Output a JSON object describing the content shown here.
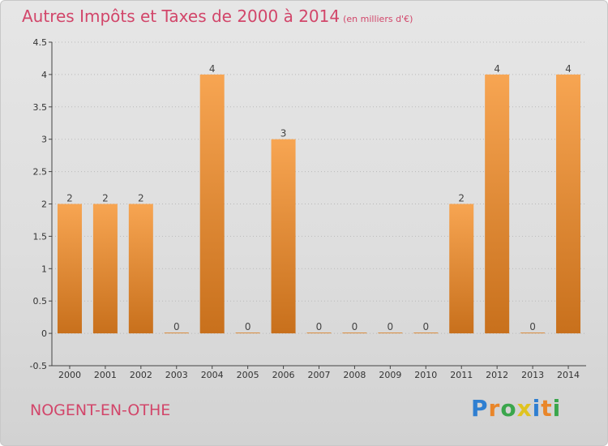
{
  "title": "Autres Impôts et Taxes de 2000 à 2014",
  "unit_label": "(en milliers d'€)",
  "commune": "NOGENT-EN-OTHE",
  "logo": {
    "text": "Proxiti",
    "letters": [
      {
        "ch": "P",
        "color": "#2f7fd1"
      },
      {
        "ch": "r",
        "color": "#e9862a"
      },
      {
        "ch": "o",
        "color": "#3aa64c"
      },
      {
        "ch": "x",
        "color": "#e0c31f"
      },
      {
        "ch": "i",
        "color": "#2f7fd1"
      },
      {
        "ch": "t",
        "color": "#e9862a"
      },
      {
        "ch": "i",
        "color": "#3aa64c"
      }
    ]
  },
  "colors": {
    "title": "#d2466a",
    "bar_light": "#f7a552",
    "bar_dark": "#c8701c",
    "axis": "#444444",
    "grid": "#b9b9b9"
  },
  "chart_data": {
    "type": "bar",
    "categories": [
      "2000",
      "2001",
      "2002",
      "2003",
      "2004",
      "2005",
      "2006",
      "2007",
      "2008",
      "2009",
      "2010",
      "2011",
      "2012",
      "2013",
      "2014"
    ],
    "values": [
      2,
      2,
      2,
      0,
      4,
      0,
      3,
      0,
      0,
      0,
      0,
      2,
      4,
      0,
      4
    ],
    "data_labels": [
      "2",
      "2",
      "2",
      "0",
      "4",
      "0",
      "3",
      "0",
      "0",
      "0",
      "0",
      "2",
      "4",
      "0",
      "4"
    ],
    "ylim": [
      -0.5,
      4.5
    ],
    "yticks": [
      -0.5,
      0,
      0.5,
      1,
      1.5,
      2,
      2.5,
      3,
      3.5,
      4,
      4.5
    ],
    "ytick_labels": [
      "-0.5",
      "0",
      "0.5",
      "1",
      "1.5",
      "2",
      "2.5",
      "3",
      "3.5",
      "4",
      "4.5"
    ],
    "grid": true
  }
}
